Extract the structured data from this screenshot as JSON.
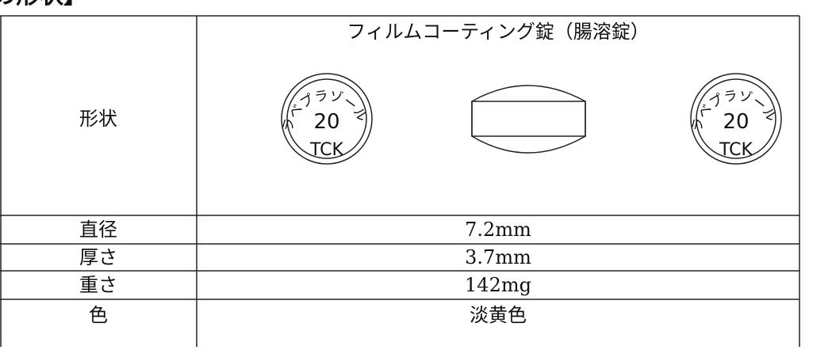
{
  "header": {
    "title": "の形状】"
  },
  "table": {
    "dosage_form": "フィルムコーティング錠（腸溶錠）",
    "shape_label": "形状",
    "imprint": {
      "arc": "ラベプラゾール",
      "strength": "20",
      "maker": "TCK"
    },
    "rows": [
      [
        "直径",
        "7.2mm"
      ],
      [
        "厚さ",
        "3.7mm"
      ],
      [
        "重さ",
        "142mg"
      ],
      [
        "色",
        "淡黄色"
      ]
    ]
  }
}
